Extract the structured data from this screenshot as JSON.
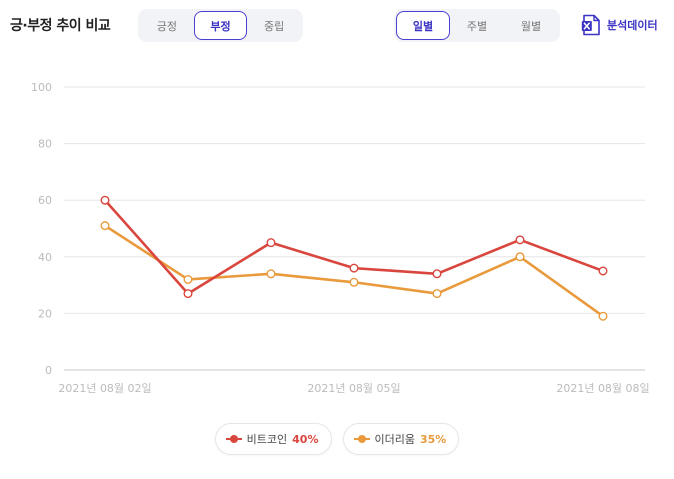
{
  "header": {
    "title": "긍·부정 추이 비교",
    "sentiment_tabs": [
      {
        "label": "긍정",
        "active": false
      },
      {
        "label": "부정",
        "active": true
      },
      {
        "label": "중립",
        "active": false
      }
    ],
    "period_tabs": [
      {
        "label": "일별",
        "active": true
      },
      {
        "label": "주별",
        "active": false
      },
      {
        "label": "월별",
        "active": false
      }
    ],
    "export_label": "분석데이터",
    "export_icon": "excel-icon"
  },
  "colors": {
    "accent": "#3b33c4",
    "bitcoin": "#d9463e",
    "ethereum": "#e89a3c",
    "grid": "#e5e5e5",
    "axis_text": "#bbbbbb"
  },
  "chart_data": {
    "type": "line",
    "x": [
      "2021-08-02",
      "2021-08-03",
      "2021-08-04",
      "2021-08-05",
      "2021-08-06",
      "2021-08-07",
      "2021-08-08"
    ],
    "x_tick_labels": [
      "2021년 08월 02일",
      "2021년 08월 05일",
      "2021년 08월 08일"
    ],
    "y_ticks": [
      0,
      20,
      40,
      60,
      80,
      100
    ],
    "ylim": [
      0,
      100
    ],
    "grid": true,
    "legend_position": "bottom-center",
    "series": [
      {
        "name": "비트코인",
        "percent": "40%",
        "color": "#d9463e",
        "values": [
          60,
          27,
          45,
          36,
          34,
          46,
          35
        ]
      },
      {
        "name": "이더리움",
        "percent": "35%",
        "color": "#e89a3c",
        "values": [
          51,
          32,
          34,
          31,
          27,
          40,
          19
        ]
      }
    ]
  }
}
